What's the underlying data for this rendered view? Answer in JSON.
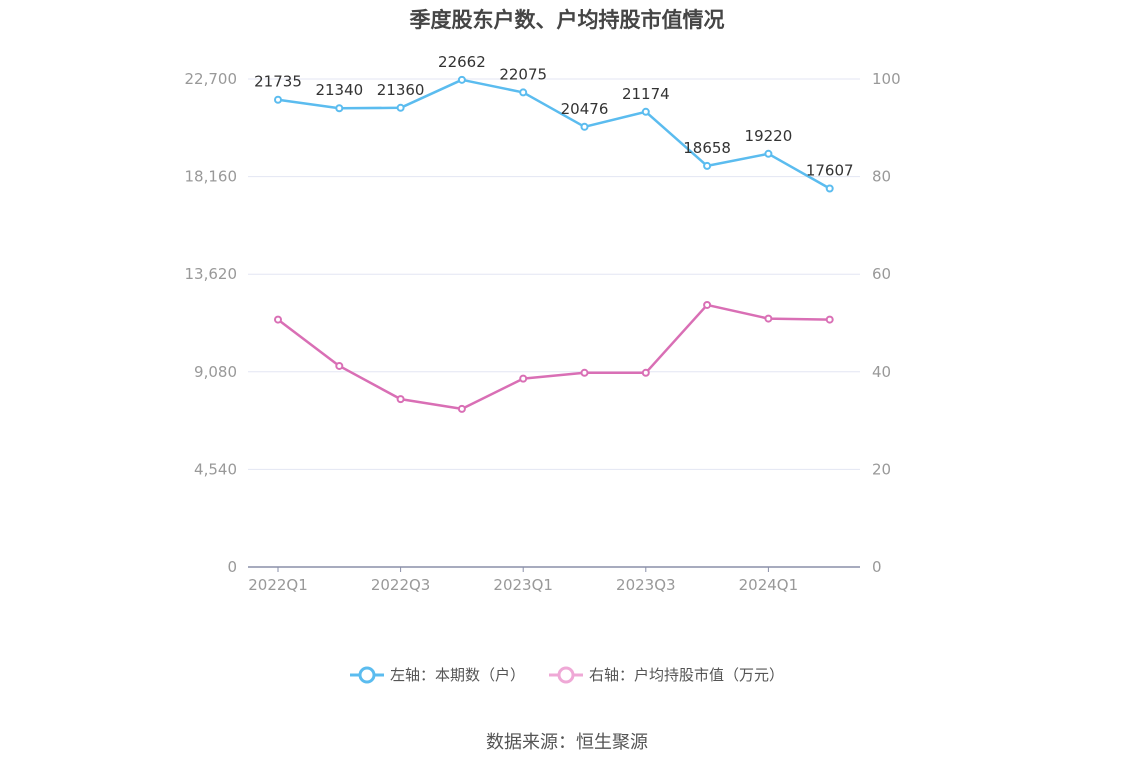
{
  "chart_data": {
    "type": "line",
    "title": "季度股东户数、户均持股市值情况",
    "categories": [
      "2022Q1",
      "2022Q2",
      "2022Q3",
      "2022Q4",
      "2023Q1",
      "2023Q2",
      "2023Q3",
      "2023Q4",
      "2024Q1",
      "2024Q2"
    ],
    "x_tick_labels": [
      "2022Q1",
      "2022Q3",
      "2023Q1",
      "2023Q3",
      "2024Q1"
    ],
    "left_axis": {
      "ticks": [
        "0",
        "4,540",
        "9,080",
        "13,620",
        "18,160",
        "22,700"
      ],
      "ylim": [
        0,
        22700
      ]
    },
    "right_axis": {
      "ticks": [
        "0",
        "20",
        "40",
        "60",
        "80",
        "100"
      ],
      "ylim": [
        0,
        100
      ]
    },
    "series": [
      {
        "name": "左轴：本期数（户）",
        "axis": "left",
        "color": "#5bbcef",
        "values": [
          21735,
          21340,
          21360,
          22662,
          22075,
          20476,
          21174,
          18658,
          19220,
          17607
        ],
        "labels": [
          "21735",
          "21340",
          "21360",
          "22662",
          "22075",
          "20476",
          "21174",
          "18658",
          "19220",
          "17607"
        ]
      },
      {
        "name": "右轴：户均持股市值（万元）",
        "axis": "right",
        "color": "#d96fb5",
        "values": [
          50.7,
          41.2,
          34.4,
          32.4,
          38.6,
          39.8,
          39.8,
          53.7,
          50.9,
          50.7
        ]
      }
    ],
    "grid": true,
    "legend_position": "bottom"
  },
  "source": "数据来源：恒生聚源"
}
